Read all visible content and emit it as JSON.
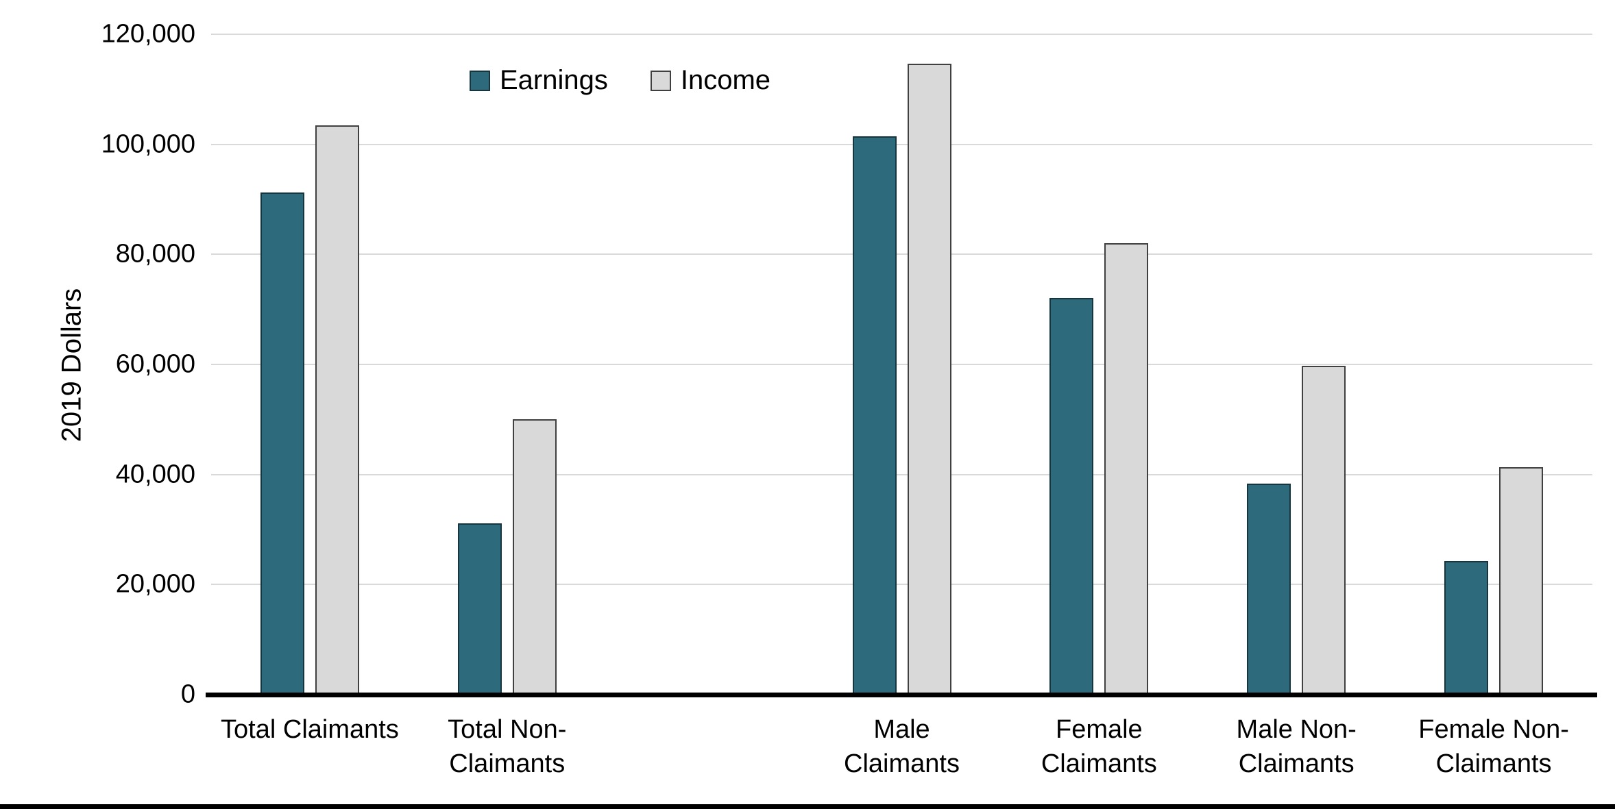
{
  "chart_data": {
    "type": "bar",
    "title": "",
    "xlabel": "",
    "ylabel": "2019 Dollars",
    "ylim": [
      0,
      120000
    ],
    "ytick_step": 20000,
    "grid": true,
    "legend_position": "top-center-inside",
    "total_slots": 7,
    "categories": [
      {
        "label": "Total Claimants",
        "slot": 0
      },
      {
        "label": "Total Non-\nClaimants",
        "slot": 1
      },
      {
        "label": "Male\nClaimants",
        "slot": 3
      },
      {
        "label": "Female\nClaimants",
        "slot": 4
      },
      {
        "label": "Male Non-\nClaimants",
        "slot": 5
      },
      {
        "label": "Female Non-\nClaimants",
        "slot": 6
      }
    ],
    "series": [
      {
        "name": "Earnings",
        "color": "#2d6a7b",
        "border_color": "#16353f",
        "values": [
          91300,
          31100,
          101500,
          72100,
          38400,
          24300
        ]
      },
      {
        "name": "Income",
        "color": "#d9d9d9",
        "border_color": "#404040",
        "values": [
          103400,
          50100,
          114700,
          82000,
          59800,
          41300
        ]
      }
    ],
    "colors": {
      "gridline": "#d9d9d9",
      "axis_line": "#000000",
      "background": "#ffffff"
    }
  }
}
